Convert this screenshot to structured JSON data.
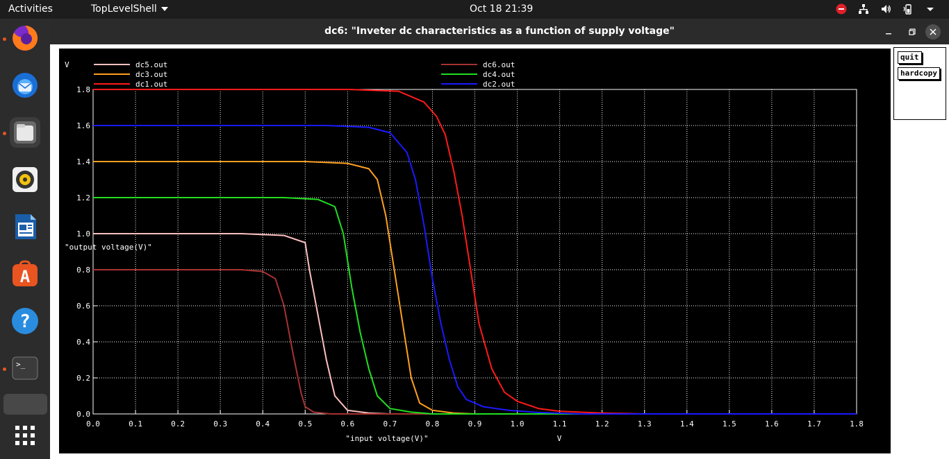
{
  "topbar": {
    "activities": "Activities",
    "app_menu": "TopLevelShell",
    "clock": "Oct 18  21:39"
  },
  "dock": {
    "items": [
      "Firefox",
      "Thunderbird",
      "Files",
      "Rhythmbox",
      "LibreOffice Writer",
      "Ubuntu Software",
      "Help",
      "Terminal",
      "Show Applications"
    ]
  },
  "window": {
    "title": "dc6: \"Inveter dc characteristics as a function of supply voltage\"",
    "quit_label": "quit",
    "hardcopy_label": "hardcopy"
  },
  "colors": {
    "dc1": "#ff1a1a",
    "dc2": "#1a1aff",
    "dc3": "#ffa020",
    "dc4": "#20e020",
    "dc5": "#ffc0c0",
    "dc6": "#a83232"
  },
  "chart_data": {
    "type": "line",
    "xlabel": "\"input voltage(V)\"",
    "ylabel": "\"output voltage(V)\"",
    "x_unit": "V",
    "y_unit": "V",
    "xlim": [
      0,
      1.8
    ],
    "ylim": [
      0,
      1.8
    ],
    "x_ticks": [
      "0.0",
      "0.1",
      "0.2",
      "0.3",
      "0.4",
      "0.5",
      "0.6",
      "0.7",
      "0.8",
      "0.9",
      "1.0",
      "1.1",
      "1.2",
      "1.3",
      "1.4",
      "1.5",
      "1.6",
      "1.7",
      "1.8"
    ],
    "y_ticks": [
      "0.0",
      "0.2",
      "0.4",
      "0.6",
      "0.8",
      "1.0",
      "1.2",
      "1.4",
      "1.6",
      "1.8"
    ],
    "grid": true,
    "legend_placement": "top",
    "series": [
      {
        "name": "dc5.out",
        "color_key": "dc5",
        "points": [
          [
            0,
            1.0
          ],
          [
            0.35,
            1.0
          ],
          [
            0.45,
            0.99
          ],
          [
            0.5,
            0.95
          ],
          [
            0.51,
            0.8
          ],
          [
            0.53,
            0.55
          ],
          [
            0.55,
            0.3
          ],
          [
            0.57,
            0.1
          ],
          [
            0.6,
            0.02
          ],
          [
            0.65,
            0.005
          ],
          [
            0.7,
            0
          ],
          [
            1.8,
            0
          ]
        ]
      },
      {
        "name": "dc3.out",
        "color_key": "dc3",
        "points": [
          [
            0,
            1.4
          ],
          [
            0.5,
            1.4
          ],
          [
            0.6,
            1.39
          ],
          [
            0.65,
            1.36
          ],
          [
            0.67,
            1.3
          ],
          [
            0.69,
            1.1
          ],
          [
            0.71,
            0.8
          ],
          [
            0.73,
            0.5
          ],
          [
            0.75,
            0.2
          ],
          [
            0.77,
            0.06
          ],
          [
            0.8,
            0.02
          ],
          [
            0.85,
            0.005
          ],
          [
            0.9,
            0
          ],
          [
            1.8,
            0
          ]
        ]
      },
      {
        "name": "dc1.out",
        "color_key": "dc1",
        "points": [
          [
            0,
            1.8
          ],
          [
            0.6,
            1.8
          ],
          [
            0.72,
            1.79
          ],
          [
            0.78,
            1.73
          ],
          [
            0.81,
            1.65
          ],
          [
            0.83,
            1.55
          ],
          [
            0.85,
            1.35
          ],
          [
            0.87,
            1.1
          ],
          [
            0.89,
            0.8
          ],
          [
            0.91,
            0.5
          ],
          [
            0.94,
            0.25
          ],
          [
            0.97,
            0.12
          ],
          [
            1.0,
            0.07
          ],
          [
            1.05,
            0.03
          ],
          [
            1.1,
            0.015
          ],
          [
            1.2,
            0.005
          ],
          [
            1.3,
            0
          ],
          [
            1.8,
            0
          ]
        ]
      },
      {
        "name": "dc6.out",
        "color_key": "dc6",
        "points": [
          [
            0,
            0.8
          ],
          [
            0.35,
            0.8
          ],
          [
            0.4,
            0.79
          ],
          [
            0.43,
            0.75
          ],
          [
            0.45,
            0.6
          ],
          [
            0.47,
            0.35
          ],
          [
            0.49,
            0.12
          ],
          [
            0.5,
            0.04
          ],
          [
            0.52,
            0.01
          ],
          [
            0.56,
            0
          ],
          [
            1.8,
            0
          ]
        ]
      },
      {
        "name": "dc4.out",
        "color_key": "dc4",
        "points": [
          [
            0,
            1.2
          ],
          [
            0.45,
            1.2
          ],
          [
            0.53,
            1.19
          ],
          [
            0.57,
            1.15
          ],
          [
            0.59,
            1.0
          ],
          [
            0.61,
            0.7
          ],
          [
            0.63,
            0.45
          ],
          [
            0.65,
            0.25
          ],
          [
            0.67,
            0.1
          ],
          [
            0.7,
            0.03
          ],
          [
            0.75,
            0.01
          ],
          [
            0.8,
            0
          ],
          [
            1.8,
            0
          ]
        ]
      },
      {
        "name": "dc2.out",
        "color_key": "dc2",
        "points": [
          [
            0,
            1.6
          ],
          [
            0.55,
            1.6
          ],
          [
            0.65,
            1.59
          ],
          [
            0.7,
            1.56
          ],
          [
            0.74,
            1.45
          ],
          [
            0.76,
            1.3
          ],
          [
            0.78,
            1.05
          ],
          [
            0.8,
            0.75
          ],
          [
            0.82,
            0.5
          ],
          [
            0.84,
            0.3
          ],
          [
            0.86,
            0.15
          ],
          [
            0.88,
            0.08
          ],
          [
            0.92,
            0.04
          ],
          [
            0.98,
            0.02
          ],
          [
            1.05,
            0.008
          ],
          [
            1.15,
            0
          ],
          [
            1.8,
            0
          ]
        ]
      }
    ]
  }
}
